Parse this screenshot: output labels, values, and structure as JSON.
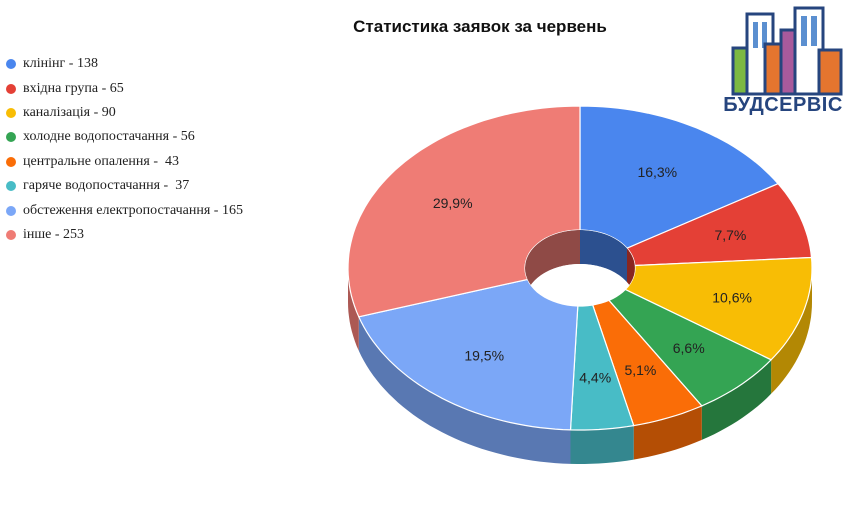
{
  "chart_data": {
    "type": "pie",
    "title": "Статистика заявок за червень",
    "legend_position": "left",
    "series": [
      {
        "name": "клінінг",
        "legend_label": "клінінг - 138",
        "value": 138,
        "percent_label": "16,3%",
        "color": "#4a86ee"
      },
      {
        "name": "вхідна група",
        "legend_label": "вхідна група - 65",
        "value": 65,
        "percent_label": "7,7%",
        "color": "#e44036"
      },
      {
        "name": "каналізація",
        "legend_label": "каналізація - 90",
        "value": 90,
        "percent_label": "10,6%",
        "color": "#f8bd05"
      },
      {
        "name": "холодне водопостачання",
        "legend_label": "холодне водопостачання - 56",
        "value": 56,
        "percent_label": "6,6%",
        "color": "#34a453"
      },
      {
        "name": "центральне опалення",
        "legend_label": "центральне опалення -  43",
        "value": 43,
        "percent_label": "5,1%",
        "color": "#fa6d07"
      },
      {
        "name": "гаряче водопостачання",
        "legend_label": "гаряче водопостачання -  37",
        "value": 37,
        "percent_label": "4,4%",
        "color": "#48bcc6"
      },
      {
        "name": "обстеження електропостачання",
        "legend_label": "обстеження електропостачання - 165",
        "value": 165,
        "percent_label": "19,5%",
        "color": "#7ba7f7"
      },
      {
        "name": "інше",
        "legend_label": "інше - 253",
        "value": 253,
        "percent_label": "29,9%",
        "color": "#ef7c75"
      }
    ]
  },
  "logo": {
    "text": "БУДСЕРВІС",
    "icon": "buildings-logo-icon",
    "colors": {
      "navy": "#26457e",
      "orange": "#e4752f",
      "green": "#7bb842",
      "purple": "#a85a9c",
      "blue": "#5b8fd0"
    }
  }
}
